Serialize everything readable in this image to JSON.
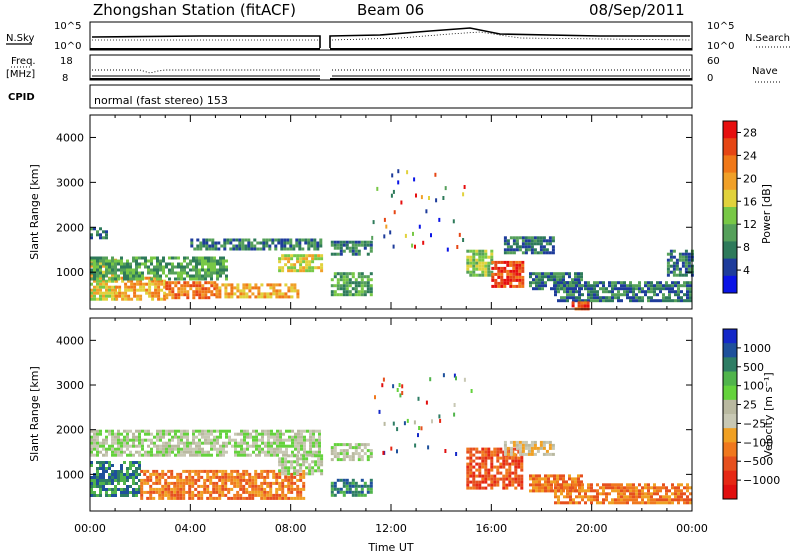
{
  "header": {
    "title": "Zhongshan Station (fitACF)",
    "beam": "Beam 06",
    "date": "08/Sep/2011"
  },
  "top_panels": {
    "nsky_label": "N.Sky",
    "nsky_ticks": [
      "10^5",
      "10^0"
    ],
    "nsearch_label": "N.Search",
    "nsearch_ticks": [
      "10^5",
      "10^0"
    ],
    "freq_label": "Freq.",
    "freq_unit": "[MHz]",
    "freq_ticks": [
      "18",
      "8"
    ],
    "nave_label": "Nave",
    "nave_ticks": [
      "60",
      "0"
    ],
    "cpid_label": "CPID",
    "cpid_value": "normal (fast stereo) 153"
  },
  "colors": {
    "power": [
      "#0a14e6",
      "#1e3c9b",
      "#2e7a5a",
      "#55a05a",
      "#78c846",
      "#e1d23c",
      "#f0a028",
      "#f07818",
      "#e64614",
      "#e60f0f"
    ],
    "velocity": [
      "#1428c8",
      "#1e509b",
      "#2e7d64",
      "#50b44b",
      "#64d23c",
      "#b9b9a0",
      "#c8c8b4",
      "#f0a023",
      "#f0781e",
      "#e6501e",
      "#e62814",
      "#e10f0f"
    ]
  },
  "chart_data": [
    {
      "type": "heatmap",
      "name": "power",
      "title": "",
      "xlabel": "",
      "ylabel": "Slant Range [km]",
      "x_ticks": [
        "00:00",
        "04:00",
        "08:00",
        "12:00",
        "16:00",
        "20:00",
        "00:00"
      ],
      "xlim_hours": [
        0,
        24
      ],
      "y_ticks": [
        1000,
        2000,
        3000,
        4000
      ],
      "ylim_km": [
        180,
        4500
      ],
      "colorbar": {
        "label": "Power [dB]",
        "ticks": [
          4,
          8,
          12,
          16,
          20,
          24,
          28
        ],
        "range": [
          0,
          30
        ]
      },
      "regions": [
        {
          "t": [
            0.0,
            1.0
          ],
          "r": [
            400,
            1300
          ],
          "level": 18
        },
        {
          "t": [
            1.0,
            3.0
          ],
          "r": [
            380,
            900
          ],
          "level": 20
        },
        {
          "t": [
            3.0,
            5.0
          ],
          "r": [
            450,
            800
          ],
          "level": 22
        },
        {
          "t": [
            5.0,
            8.3
          ],
          "r": [
            420,
            750
          ],
          "level": 21
        },
        {
          "t": [
            0.0,
            5.5
          ],
          "r": [
            850,
            1350
          ],
          "level": 9
        },
        {
          "t": [
            0.0,
            0.6
          ],
          "r": [
            1750,
            2000
          ],
          "level": 7
        },
        {
          "t": [
            4.0,
            9.2
          ],
          "r": [
            1500,
            1750
          ],
          "level": 7
        },
        {
          "t": [
            7.5,
            9.2
          ],
          "r": [
            1000,
            1400
          ],
          "level": 15
        },
        {
          "t": [
            9.6,
            11.2
          ],
          "r": [
            1400,
            1700
          ],
          "level": 8
        },
        {
          "t": [
            9.6,
            11.2
          ],
          "r": [
            500,
            1000
          ],
          "level": 10
        },
        {
          "t": [
            15.0,
            16.0
          ],
          "r": [
            900,
            1500
          ],
          "level": 14
        },
        {
          "t": [
            16.0,
            17.3
          ],
          "r": [
            650,
            1250
          ],
          "level": 28
        },
        {
          "t": [
            16.5,
            18.5
          ],
          "r": [
            1400,
            1800
          ],
          "level": 7
        },
        {
          "t": [
            17.5,
            19.6
          ],
          "r": [
            600,
            1000
          ],
          "level": 8
        },
        {
          "t": [
            18.5,
            24.0
          ],
          "r": [
            350,
            800
          ],
          "level": 8
        },
        {
          "t": [
            19.2,
            19.9
          ],
          "r": [
            180,
            350
          ],
          "level": 25
        },
        {
          "t": [
            23.0,
            24.0
          ],
          "r": [
            900,
            1500
          ],
          "level": 7
        }
      ]
    },
    {
      "type": "heatmap",
      "name": "velocity",
      "title": "",
      "xlabel": "Time UT",
      "ylabel": "Slant Range [km]",
      "x_ticks": [
        "00:00",
        "04:00",
        "08:00",
        "12:00",
        "16:00",
        "20:00",
        "00:00"
      ],
      "xlim_hours": [
        0,
        24
      ],
      "y_ticks": [
        1000,
        2000,
        3000,
        4000
      ],
      "ylim_km": [
        180,
        4500
      ],
      "colorbar": {
        "label": "Velocity [m s⁻¹]",
        "ticks": [
          "1000",
          "500",
          "100",
          "25",
          "−25",
          "−100",
          "−500",
          "−1000"
        ]
      },
      "regions": [
        {
          "t": [
            0.0,
            2.0
          ],
          "r": [
            500,
            1300
          ],
          "level": 2
        },
        {
          "t": [
            2.0,
            8.5
          ],
          "r": [
            450,
            1100
          ],
          "level": 8
        },
        {
          "t": [
            0.0,
            9.2
          ],
          "r": [
            1400,
            2000
          ],
          "level": 5
        },
        {
          "t": [
            7.5,
            9.2
          ],
          "r": [
            1000,
            1450
          ],
          "level": 5
        },
        {
          "t": [
            9.6,
            11.2
          ],
          "r": [
            1350,
            1700
          ],
          "level": 5
        },
        {
          "t": [
            9.6,
            11.2
          ],
          "r": [
            500,
            900
          ],
          "level": 2
        },
        {
          "t": [
            15.0,
            17.2
          ],
          "r": [
            700,
            1600
          ],
          "level": 9
        },
        {
          "t": [
            16.5,
            18.5
          ],
          "r": [
            1450,
            1750
          ],
          "level": 6
        },
        {
          "t": [
            17.5,
            19.6
          ],
          "r": [
            600,
            1000
          ],
          "level": 8
        },
        {
          "t": [
            18.5,
            24.0
          ],
          "r": [
            350,
            800
          ],
          "level": 8
        }
      ]
    }
  ]
}
